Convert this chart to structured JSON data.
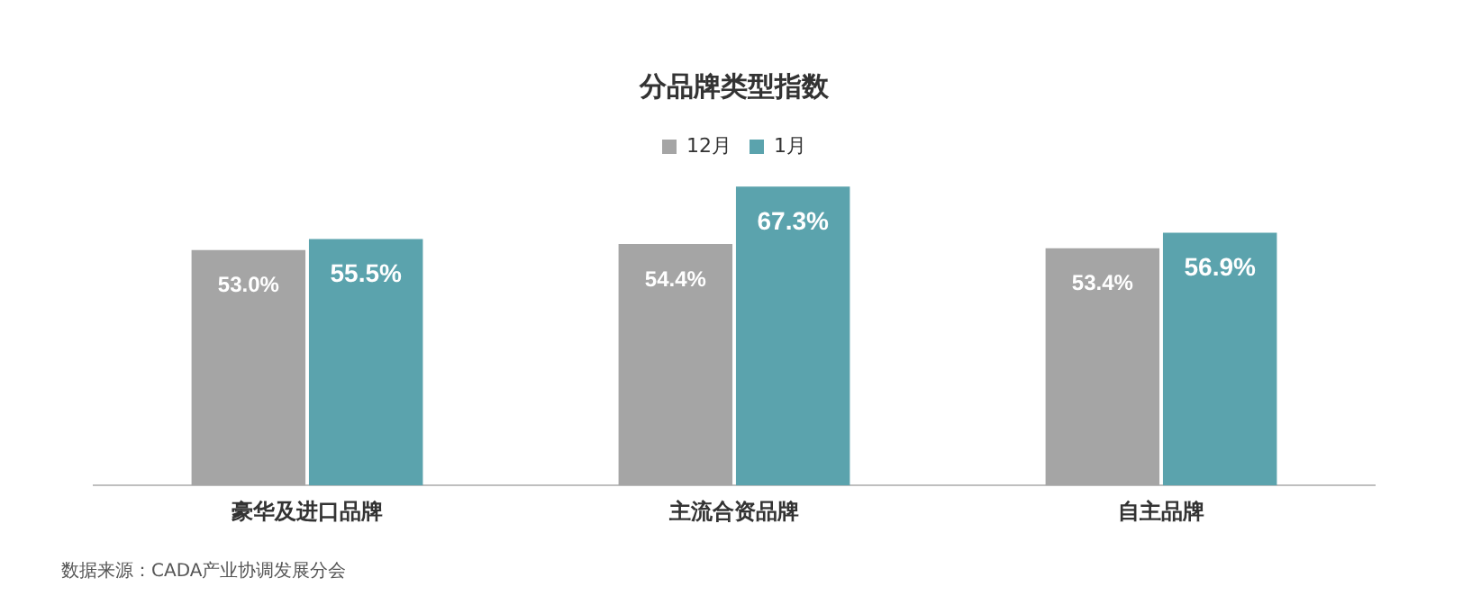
{
  "chart_data": {
    "type": "bar",
    "title": "分品牌类型指数",
    "categories": [
      "豪华及进口品牌",
      "主流合资品牌",
      "自主品牌"
    ],
    "series": [
      {
        "name": "12月",
        "color": "#a5a5a5",
        "values": [
          53.0,
          54.4,
          53.4
        ],
        "value_labels": [
          "53.0%",
          "54.4%",
          "53.4%"
        ]
      },
      {
        "name": "1月",
        "color": "#5ba3ad",
        "values": [
          55.5,
          67.3,
          56.9
        ],
        "value_labels": [
          "55.5%",
          "67.3%",
          "56.9%"
        ]
      }
    ],
    "legend": "top",
    "grid": false,
    "annotations": [
      "数据来源：CADA产业协调发展分会"
    ]
  }
}
